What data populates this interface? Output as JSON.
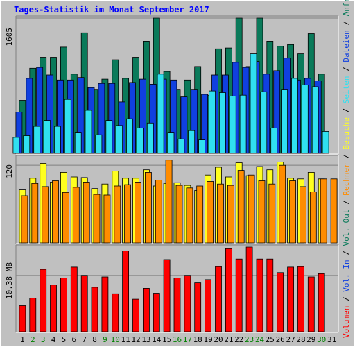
{
  "title": "Tages-Statistik im Monat September 2017",
  "colors": {
    "background": "#c0c0c0",
    "title": "#0000ff",
    "anfragen": "#0a7a5a",
    "dateien": "#1040e0",
    "seiten": "#30e0f0",
    "besuche": "#ffff20",
    "rechner": "#ff8c00",
    "volumen": "#ff0000",
    "weekend_label": "#008000",
    "weekday_label": "#000000"
  },
  "chart_data": [
    {
      "type": "bar",
      "panel": "hits",
      "y_tick_label": "1605",
      "ylim": [
        0,
        1605
      ],
      "categories": [
        "1",
        "2",
        "3",
        "4",
        "5",
        "6",
        "7",
        "8",
        "9",
        "10",
        "11",
        "12",
        "13",
        "14",
        "15",
        "16",
        "17",
        "18",
        "19",
        "20",
        "21",
        "22",
        "23",
        "24",
        "25",
        "26",
        "27",
        "28",
        "29",
        "30",
        "31"
      ],
      "weekend_days": [
        "2",
        "3",
        "9",
        "10",
        "16",
        "17",
        "23",
        "24",
        "30"
      ],
      "series": [
        {
          "name": "Anfragen",
          "color_key": "anfragen",
          "values": [
            630,
            1010,
            1140,
            1140,
            1260,
            940,
            1430,
            760,
            880,
            1110,
            890,
            1140,
            1330,
            1605,
            970,
            760,
            870,
            1030,
            690,
            1240,
            1250,
            1605,
            1030,
            1605,
            1330,
            1270,
            1290,
            1180,
            1420,
            940,
            0
          ]
        },
        {
          "name": "Dateien",
          "color_key": "dateien",
          "values": [
            490,
            890,
            1020,
            930,
            870,
            870,
            900,
            780,
            830,
            830,
            610,
            840,
            880,
            820,
            880,
            870,
            670,
            760,
            700,
            930,
            930,
            1080,
            1020,
            1090,
            940,
            980,
            1130,
            870,
            890,
            860,
            0
          ]
        },
        {
          "name": "Seiten",
          "color_key": "seiten",
          "values": [
            190,
            210,
            320,
            390,
            320,
            640,
            250,
            510,
            220,
            390,
            330,
            410,
            300,
            360,
            940,
            250,
            170,
            270,
            160,
            740,
            720,
            680,
            690,
            1180,
            730,
            300,
            760,
            890,
            810,
            790,
            260
          ]
        }
      ]
    },
    {
      "type": "bar",
      "panel": "visits",
      "y_tick_label": "120",
      "ylim": [
        0,
        132
      ],
      "categories": [
        "1",
        "2",
        "3",
        "4",
        "5",
        "6",
        "7",
        "8",
        "9",
        "10",
        "11",
        "12",
        "13",
        "14",
        "15",
        "16",
        "17",
        "18",
        "19",
        "20",
        "21",
        "22",
        "23",
        "24",
        "25",
        "26",
        "27",
        "28",
        "29",
        "30",
        "31"
      ],
      "series": [
        {
          "name": "Besuche",
          "color_key": "besuche",
          "values": [
            82,
            100,
            123,
            94,
            109,
            102,
            101,
            84,
            91,
            111,
            100,
            100,
            113,
            88,
            92,
            93,
            89,
            81,
            105,
            117,
            102,
            124,
            104,
            118,
            113,
            125,
            100,
            99,
            109,
            99,
            0
          ]
        },
        {
          "name": "Rechner",
          "color_key": "rechner",
          "values": [
            73,
            92,
            87,
            96,
            78,
            86,
            94,
            75,
            74,
            88,
            90,
            94,
            109,
            97,
            128,
            89,
            85,
            88,
            95,
            91,
            89,
            112,
            105,
            96,
            91,
            120,
            96,
            87,
            79,
            99,
            99
          ]
        }
      ]
    },
    {
      "type": "bar",
      "panel": "volume",
      "y_tick_label": "10.38 MB",
      "ylim": [
        0,
        15.6
      ],
      "categories": [
        "1",
        "2",
        "3",
        "4",
        "5",
        "6",
        "7",
        "8",
        "9",
        "10",
        "11",
        "12",
        "13",
        "14",
        "15",
        "16",
        "17",
        "18",
        "19",
        "20",
        "21",
        "22",
        "23",
        "24",
        "25",
        "26",
        "27",
        "28",
        "29",
        "30",
        "31"
      ],
      "series": [
        {
          "name": "Volumen",
          "color_key": "volumen",
          "values": [
            4.8,
            6.2,
            11.5,
            8.6,
            9.9,
            11.9,
            10.4,
            8.2,
            10.1,
            7.0,
            14.9,
            6.0,
            8.0,
            7.1,
            13.3,
            9.9,
            10.4,
            9.0,
            9.6,
            12.0,
            15.3,
            13.4,
            15.6,
            13.4,
            13.4,
            10.9,
            11.9,
            12.0,
            10.1,
            10.7,
            0
          ]
        }
      ]
    }
  ],
  "side_labels": [
    {
      "text": "Volumen",
      "color_key": "volumen"
    },
    {
      "text": " / ",
      "color_key": "weekday_label"
    },
    {
      "text": "Vol. In",
      "color_key": "dateien"
    },
    {
      "text": " / ",
      "color_key": "weekday_label"
    },
    {
      "text": "Vol. Out",
      "color_key": "anfragen"
    },
    {
      "text": " / ",
      "color_key": "weekday_label"
    },
    {
      "text": "Rechner",
      "color_key": "rechner"
    },
    {
      "text": " / ",
      "color_key": "weekday_label"
    },
    {
      "text": "Besuche",
      "color_key": "besuche"
    },
    {
      "text": " / ",
      "color_key": "weekday_label"
    },
    {
      "text": "Seiten",
      "color_key": "seiten"
    },
    {
      "text": " / ",
      "color_key": "weekday_label"
    },
    {
      "text": "Dateien",
      "color_key": "dateien"
    },
    {
      "text": " / ",
      "color_key": "weekday_label"
    },
    {
      "text": "Anfragen",
      "color_key": "anfragen"
    }
  ]
}
